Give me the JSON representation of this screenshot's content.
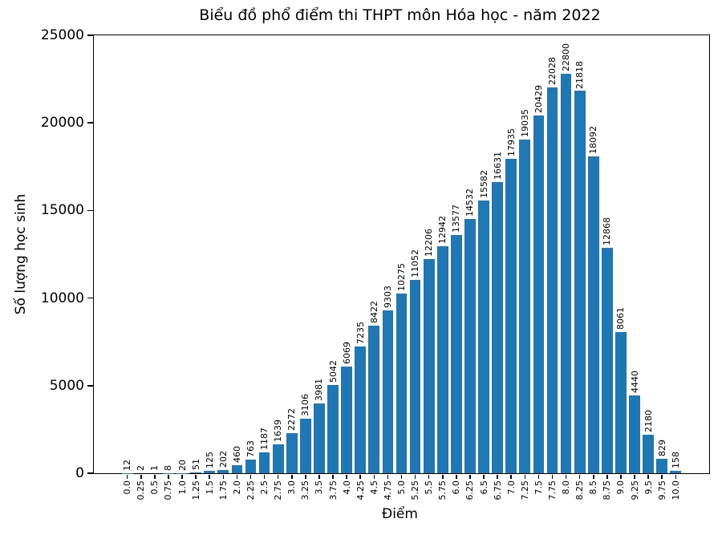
{
  "chart_data": {
    "type": "bar",
    "title": "Biểu đồ phổ điểm thi THPT môn Hóa học - năm 2022",
    "xlabel": "Điểm",
    "ylabel": "Số lượng học sinh",
    "categories": [
      "0.0",
      "0.25",
      "0.5",
      "0.75",
      "1.0",
      "1.25",
      "1.5",
      "1.75",
      "2.0",
      "2.25",
      "2.5",
      "2.75",
      "3.0",
      "3.25",
      "3.5",
      "3.75",
      "4.0",
      "4.25",
      "4.5",
      "4.75",
      "5.0",
      "5.25",
      "5.5",
      "5.75",
      "6.0",
      "6.25",
      "6.5",
      "6.75",
      "7.0",
      "7.25",
      "7.5",
      "7.75",
      "8.0",
      "8.25",
      "8.5",
      "8.75",
      "9.0",
      "9.25",
      "9.5",
      "9.75",
      "10.0"
    ],
    "values": [
      12,
      2,
      1,
      8,
      20,
      51,
      125,
      202,
      460,
      763,
      1187,
      1639,
      2272,
      3106,
      3981,
      5042,
      6069,
      7235,
      8422,
      9303,
      10275,
      11052,
      12206,
      12942,
      13577,
      14532,
      15582,
      16631,
      17935,
      19035,
      20429,
      22028,
      22800,
      21818,
      18092,
      12868,
      8061,
      4440,
      2180,
      829,
      158
    ],
    "yticks": [
      0,
      5000,
      10000,
      15000,
      20000,
      25000
    ],
    "ylim": [
      0,
      25000
    ],
    "bar_color": "#1f77b4",
    "axis_color": "#000000",
    "grid": false,
    "legend": "none",
    "bar_value_labels": true,
    "tick_label_rotation": 90
  }
}
